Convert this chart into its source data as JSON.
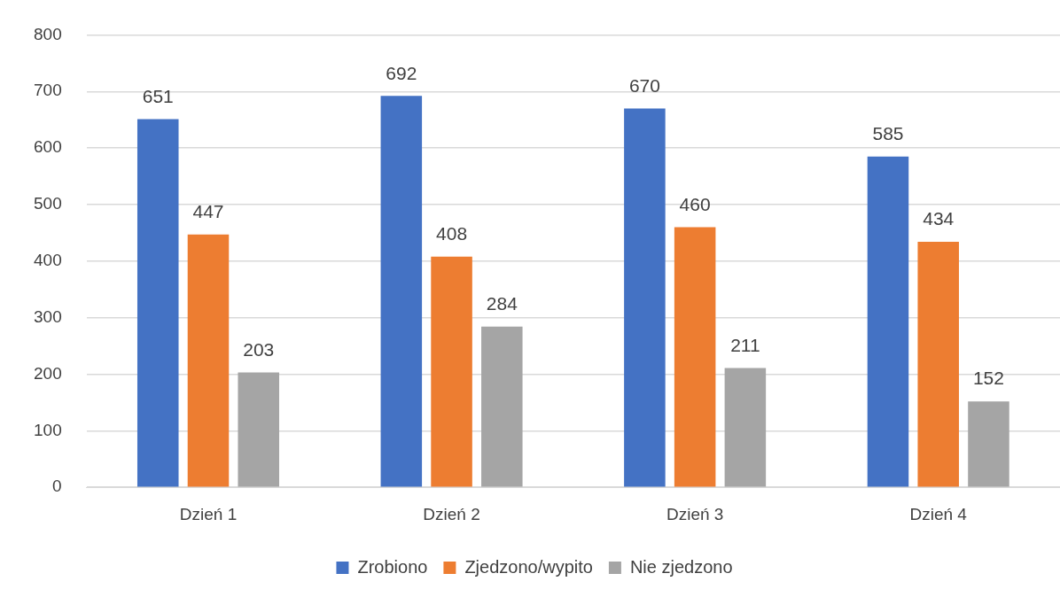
{
  "chart_data": {
    "type": "bar",
    "categories": [
      "Dzień 1",
      "Dzień 2",
      "Dzień 3",
      "Dzień 4"
    ],
    "series": [
      {
        "name": "Zrobiono",
        "color": "#4472c4",
        "values": [
          651,
          692,
          670,
          585
        ]
      },
      {
        "name": "Zjedzono/wypito",
        "color": "#ed7d31",
        "values": [
          447,
          408,
          460,
          434
        ]
      },
      {
        "name": "Nie zjedzono",
        "color": "#a5a5a5",
        "values": [
          203,
          284,
          211,
          152
        ]
      }
    ],
    "ylim": [
      0,
      800
    ],
    "yticks": [
      0,
      100,
      200,
      300,
      400,
      500,
      600,
      700,
      800
    ],
    "grid": "y",
    "legend": "bottom",
    "data_labels": true
  }
}
